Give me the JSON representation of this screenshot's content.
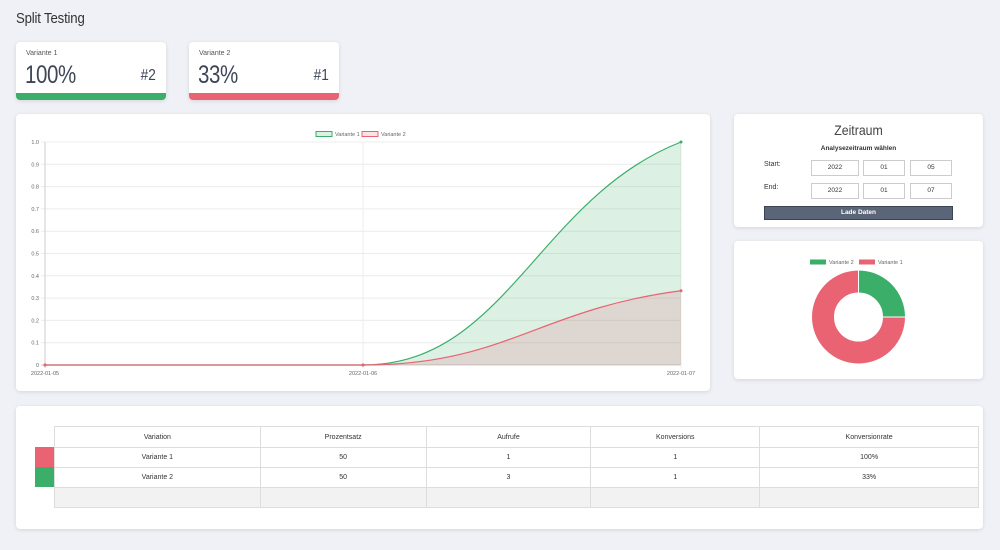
{
  "page": {
    "title": "Split Testing"
  },
  "stats": [
    {
      "label": "Variante 1",
      "value": "100%",
      "rank": "#2",
      "color": "#3bae69"
    },
    {
      "label": "Variante 2",
      "value": "33%",
      "rank": "#1",
      "color": "#e96373"
    }
  ],
  "colors": {
    "green": "#3bae69",
    "red": "#e96373",
    "button": "#5a6677"
  },
  "chart_data": [
    {
      "type": "area",
      "x": [
        "2022-01-05",
        "2022-01-06",
        "2022-01-07"
      ],
      "y_ticks": [
        "0",
        "0.1",
        "0.2",
        "0.3",
        "0.4",
        "0.5",
        "0.6",
        "0.7",
        "0.8",
        "0.9",
        "1.0"
      ],
      "ylim": [
        0,
        1.0
      ],
      "legend": [
        "Variante 1",
        "Variante 2"
      ],
      "legend_position": "top",
      "series": [
        {
          "name": "Variante 1",
          "values": [
            0,
            0,
            1.0
          ],
          "color": "#3bae69"
        },
        {
          "name": "Variante 2",
          "values": [
            0,
            0,
            0.333
          ],
          "color": "#e96373"
        }
      ]
    },
    {
      "type": "pie",
      "legend": [
        "Variante 2",
        "Variante 1"
      ],
      "legend_position": "top",
      "slices": [
        {
          "name": "Variante 2",
          "value": 25,
          "color": "#3bae69"
        },
        {
          "name": "Variante 1",
          "value": 75,
          "color": "#e96373"
        }
      ]
    }
  ],
  "period": {
    "title": "Zeitraum",
    "subtitle": "Analysezeitraum wählen",
    "start_label": "Start:",
    "end_label": "End:",
    "start": {
      "year": "2022",
      "month": "01",
      "day": "05"
    },
    "end": {
      "year": "2022",
      "month": "01",
      "day": "07"
    },
    "load_button": "Lade Daten"
  },
  "table": {
    "headers": [
      "Variation",
      "Prozentsatz",
      "Aufrufe",
      "Konversions",
      "Konversionrate"
    ],
    "rows": [
      {
        "color": "#e96373",
        "cells": [
          "Variante 1",
          "50",
          "1",
          "1",
          "100%"
        ]
      },
      {
        "color": "#3bae69",
        "cells": [
          "Variante 2",
          "50",
          "3",
          "1",
          "33%"
        ]
      }
    ]
  }
}
